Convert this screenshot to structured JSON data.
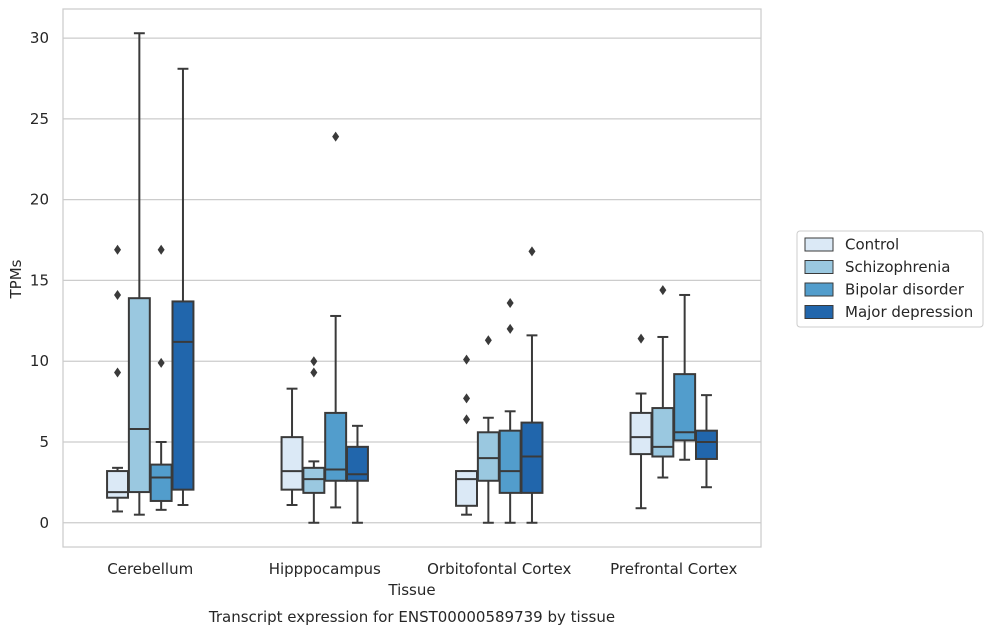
{
  "chart_data": {
    "type": "boxplot",
    "caption": "Transcript expression for ENST00000589739 by tissue",
    "xlabel": "Tissue",
    "ylabel": "TPMs",
    "ylim": [
      -1.5,
      31.8
    ],
    "yticks": [
      0,
      5,
      10,
      15,
      20,
      25,
      30
    ],
    "grid": "horizontal",
    "legend_position": "right",
    "categories": [
      "Cerebellum",
      "Hipppocampus",
      "Orbitofontal Cortex",
      "Prefrontal Cortex"
    ],
    "series": [
      {
        "name": "Control",
        "color": "#dbe9f6",
        "boxes": [
          {
            "whislo": 0.7,
            "q1": 1.55,
            "med": 1.9,
            "q3": 3.2,
            "whishi": 3.4,
            "fliers": [
              9.3,
              14.1,
              16.9
            ]
          },
          {
            "whislo": 1.1,
            "q1": 2.05,
            "med": 3.2,
            "q3": 5.3,
            "whishi": 8.3,
            "fliers": []
          },
          {
            "whislo": 0.5,
            "q1": 1.05,
            "med": 2.7,
            "q3": 3.2,
            "whishi": 3.2,
            "fliers": [
              6.4,
              7.7,
              10.1
            ]
          },
          {
            "whislo": 0.9,
            "q1": 4.25,
            "med": 5.3,
            "q3": 6.8,
            "whishi": 8.0,
            "fliers": [
              11.4
            ]
          }
        ]
      },
      {
        "name": "Schizophrenia",
        "color": "#9ac8e0",
        "boxes": [
          {
            "whislo": 0.5,
            "q1": 1.9,
            "med": 5.8,
            "q3": 13.9,
            "whishi": 30.3,
            "fliers": []
          },
          {
            "whislo": 0.0,
            "q1": 1.85,
            "med": 2.7,
            "q3": 3.4,
            "whishi": 3.8,
            "fliers": [
              9.3,
              10.0
            ]
          },
          {
            "whislo": 0.0,
            "q1": 2.6,
            "med": 4.0,
            "q3": 5.6,
            "whishi": 6.5,
            "fliers": [
              11.3
            ]
          },
          {
            "whislo": 2.8,
            "q1": 4.1,
            "med": 4.7,
            "q3": 7.1,
            "whishi": 11.5,
            "fliers": [
              14.4
            ]
          }
        ]
      },
      {
        "name": "Bipolar disorder",
        "color": "#529dcc",
        "boxes": [
          {
            "whislo": 0.8,
            "q1": 1.35,
            "med": 2.8,
            "q3": 3.6,
            "whishi": 5.0,
            "fliers": [
              9.9,
              16.9
            ]
          },
          {
            "whislo": 0.95,
            "q1": 2.6,
            "med": 3.3,
            "q3": 6.8,
            "whishi": 12.8,
            "fliers": [
              23.9
            ]
          },
          {
            "whislo": 0.0,
            "q1": 1.85,
            "med": 3.2,
            "q3": 5.7,
            "whishi": 6.9,
            "fliers": [
              12.0,
              13.6
            ]
          },
          {
            "whislo": 3.9,
            "q1": 5.1,
            "med": 5.6,
            "q3": 9.2,
            "whishi": 14.1,
            "fliers": []
          }
        ]
      },
      {
        "name": "Major depression",
        "color": "#2166ac",
        "boxes": [
          {
            "whislo": 1.1,
            "q1": 2.05,
            "med": 11.2,
            "q3": 13.7,
            "whishi": 28.1,
            "fliers": []
          },
          {
            "whislo": 0.0,
            "q1": 2.6,
            "med": 3.0,
            "q3": 4.7,
            "whishi": 6.0,
            "fliers": []
          },
          {
            "whislo": 0.0,
            "q1": 1.85,
            "med": 4.1,
            "q3": 6.2,
            "whishi": 11.6,
            "fliers": [
              16.8
            ]
          },
          {
            "whislo": 2.2,
            "q1": 3.95,
            "med": 5.0,
            "q3": 5.7,
            "whishi": 7.9,
            "fliers": []
          }
        ]
      }
    ]
  }
}
